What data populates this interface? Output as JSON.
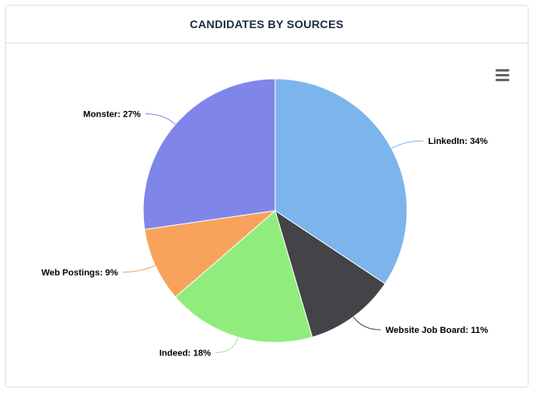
{
  "header": {
    "title": "CANDIDATES BY SOURCES"
  },
  "menu": {
    "icon": "hamburger-menu-icon"
  },
  "chart_data": {
    "type": "pie",
    "title": "CANDIDATES BY SOURCES",
    "slices": [
      {
        "label": "LinkedIn: 34%",
        "name": "LinkedIn",
        "value": 34,
        "color": "#7cb5ec"
      },
      {
        "label": "Website Job Board: 11%",
        "name": "Website Job Board",
        "value": 11,
        "color": "#434348"
      },
      {
        "label": "Indeed: 18%",
        "name": "Indeed",
        "value": 18,
        "color": "#90ed7d"
      },
      {
        "label": "Web Postings: 9%",
        "name": "Web Postings",
        "value": 9,
        "color": "#f7a35c"
      },
      {
        "label": "Monster: 27%",
        "name": "Monster",
        "value": 27,
        "color": "#8085e9"
      }
    ]
  }
}
